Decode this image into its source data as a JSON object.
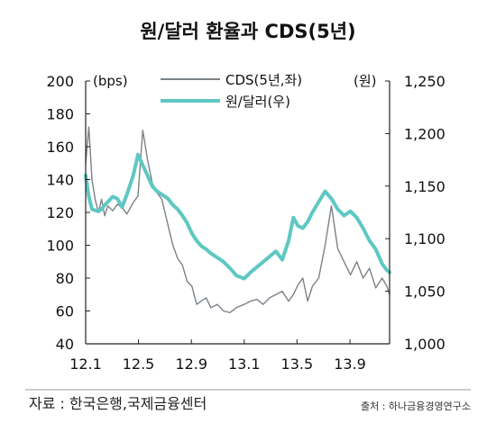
{
  "chart_data": {
    "type": "line",
    "title": "원/달러 환율과 CDS(5년)",
    "left_axis": {
      "unit_label": "(bps)",
      "min": 40,
      "max": 200,
      "ticks": [
        40,
        60,
        80,
        100,
        120,
        140,
        160,
        180,
        200
      ],
      "tick_labels": [
        "40",
        "60",
        "80",
        "100",
        "120",
        "140",
        "160",
        "180",
        "200"
      ]
    },
    "right_axis": {
      "unit_label": "(원)",
      "min": 1000,
      "max": 1250,
      "ticks": [
        1000,
        1050,
        1100,
        1150,
        1200,
        1250
      ],
      "tick_labels": [
        "1,000",
        "1,050",
        "1,100",
        "1,150",
        "1,200",
        "1,250"
      ]
    },
    "x_axis": {
      "min": 2012.0,
      "max": 2013.917,
      "ticks": [
        2012.0,
        2012.333,
        2012.667,
        2013.0,
        2013.333,
        2013.667
      ],
      "tick_labels": [
        "12.1",
        "12.5",
        "12.9",
        "13.1",
        "13.5",
        "13.9"
      ]
    },
    "legend": {
      "placement": "top-right"
    },
    "grid": false,
    "colors": {
      "cds": "#7b8288",
      "krw": "#5ec8c2",
      "axis": "#222222"
    },
    "series": [
      {
        "name": "CDS(5년,좌)",
        "axis": "left",
        "x": [
          2012.0,
          2012.02,
          2012.04,
          2012.06,
          2012.08,
          2012.1,
          2012.12,
          2012.14,
          2012.17,
          2012.2,
          2012.23,
          2012.26,
          2012.3,
          2012.33,
          2012.36,
          2012.39,
          2012.42,
          2012.45,
          2012.48,
          2012.52,
          2012.55,
          2012.58,
          2012.61,
          2012.64,
          2012.67,
          2012.7,
          2012.73,
          2012.76,
          2012.79,
          2012.83,
          2012.87,
          2012.91,
          2012.95,
          2013.0,
          2013.04,
          2013.08,
          2013.12,
          2013.16,
          2013.2,
          2013.24,
          2013.28,
          2013.31,
          2013.34,
          2013.37,
          2013.4,
          2013.43,
          2013.47,
          2013.51,
          2013.55,
          2013.59,
          2013.63,
          2013.67,
          2013.71,
          2013.75,
          2013.79,
          2013.83,
          2013.87,
          2013.9,
          2013.917
        ],
        "values": [
          150,
          172,
          140,
          128,
          120,
          128,
          118,
          124,
          121,
          125,
          123,
          119,
          126,
          130,
          170,
          152,
          138,
          132,
          128,
          112,
          100,
          92,
          88,
          78,
          75,
          64,
          66,
          68,
          62,
          64,
          60,
          59,
          62,
          64,
          66,
          67,
          64,
          68,
          70,
          72,
          66,
          70,
          76,
          80,
          66,
          75,
          80,
          100,
          124,
          98,
          90,
          82,
          90,
          80,
          86,
          74,
          80,
          75,
          70
        ]
      },
      {
        "name": "원/달러(우)",
        "axis": "right",
        "x": [
          2012.0,
          2012.02,
          2012.04,
          2012.06,
          2012.08,
          2012.1,
          2012.12,
          2012.14,
          2012.17,
          2012.2,
          2012.23,
          2012.26,
          2012.3,
          2012.33,
          2012.36,
          2012.39,
          2012.42,
          2012.45,
          2012.48,
          2012.52,
          2012.55,
          2012.58,
          2012.61,
          2012.64,
          2012.67,
          2012.7,
          2012.73,
          2012.76,
          2012.79,
          2012.83,
          2012.87,
          2012.91,
          2012.95,
          2013.0,
          2013.04,
          2013.08,
          2013.12,
          2013.16,
          2013.2,
          2013.24,
          2013.28,
          2013.31,
          2013.34,
          2013.37,
          2013.4,
          2013.43,
          2013.47,
          2013.51,
          2013.55,
          2013.59,
          2013.63,
          2013.67,
          2013.71,
          2013.75,
          2013.79,
          2013.83,
          2013.87,
          2013.9,
          2013.917
        ],
        "values": [
          1160,
          1140,
          1128,
          1127,
          1126,
          1128,
          1132,
          1135,
          1140,
          1138,
          1130,
          1142,
          1160,
          1180,
          1170,
          1160,
          1150,
          1145,
          1142,
          1138,
          1132,
          1128,
          1122,
          1115,
          1105,
          1098,
          1093,
          1090,
          1086,
          1082,
          1078,
          1072,
          1065,
          1062,
          1068,
          1073,
          1078,
          1083,
          1088,
          1080,
          1098,
          1120,
          1112,
          1110,
          1116,
          1125,
          1135,
          1145,
          1138,
          1128,
          1122,
          1126,
          1120,
          1110,
          1098,
          1090,
          1076,
          1070,
          1068
        ]
      }
    ]
  },
  "footer": {
    "source_label": "자료 : 한국은행,국제금융센터",
    "credit": "출처 : 하나금융경영연구소"
  }
}
